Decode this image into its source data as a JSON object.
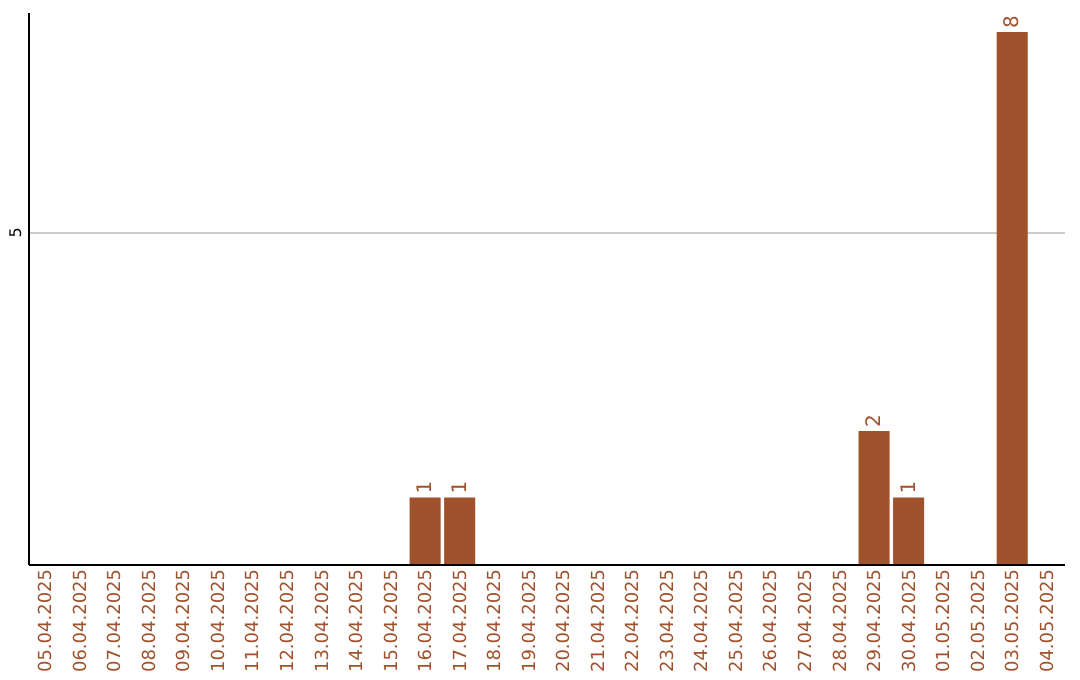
{
  "chart_data": {
    "type": "bar",
    "categories": [
      "05.04.2025",
      "06.04.2025",
      "07.04.2025",
      "08.04.2025",
      "09.04.2025",
      "10.04.2025",
      "11.04.2025",
      "12.04.2025",
      "13.04.2025",
      "14.04.2025",
      "15.04.2025",
      "16.04.2025",
      "17.04.2025",
      "18.04.2025",
      "19.04.2025",
      "20.04.2025",
      "21.04.2025",
      "22.04.2025",
      "23.04.2025",
      "24.04.2025",
      "25.04.2025",
      "26.04.2025",
      "27.04.2025",
      "28.04.2025",
      "29.04.2025",
      "30.04.2025",
      "01.05.2025",
      "02.05.2025",
      "03.05.2025",
      "04.05.2025"
    ],
    "values": [
      0,
      0,
      0,
      0,
      0,
      0,
      0,
      0,
      0,
      0,
      0,
      1,
      1,
      0,
      0,
      0,
      0,
      0,
      0,
      0,
      0,
      0,
      0,
      0,
      2,
      1,
      0,
      0,
      8,
      0
    ],
    "color": "#a0522d",
    "value_labels": [
      null,
      null,
      null,
      null,
      null,
      null,
      null,
      null,
      null,
      null,
      null,
      "1",
      "1",
      null,
      null,
      null,
      null,
      null,
      null,
      null,
      null,
      null,
      null,
      null,
      "2",
      "1",
      null,
      null,
      "8",
      null
    ],
    "ylim": [
      0,
      8.3
    ],
    "yticks": [
      5
    ],
    "grid": "y"
  }
}
